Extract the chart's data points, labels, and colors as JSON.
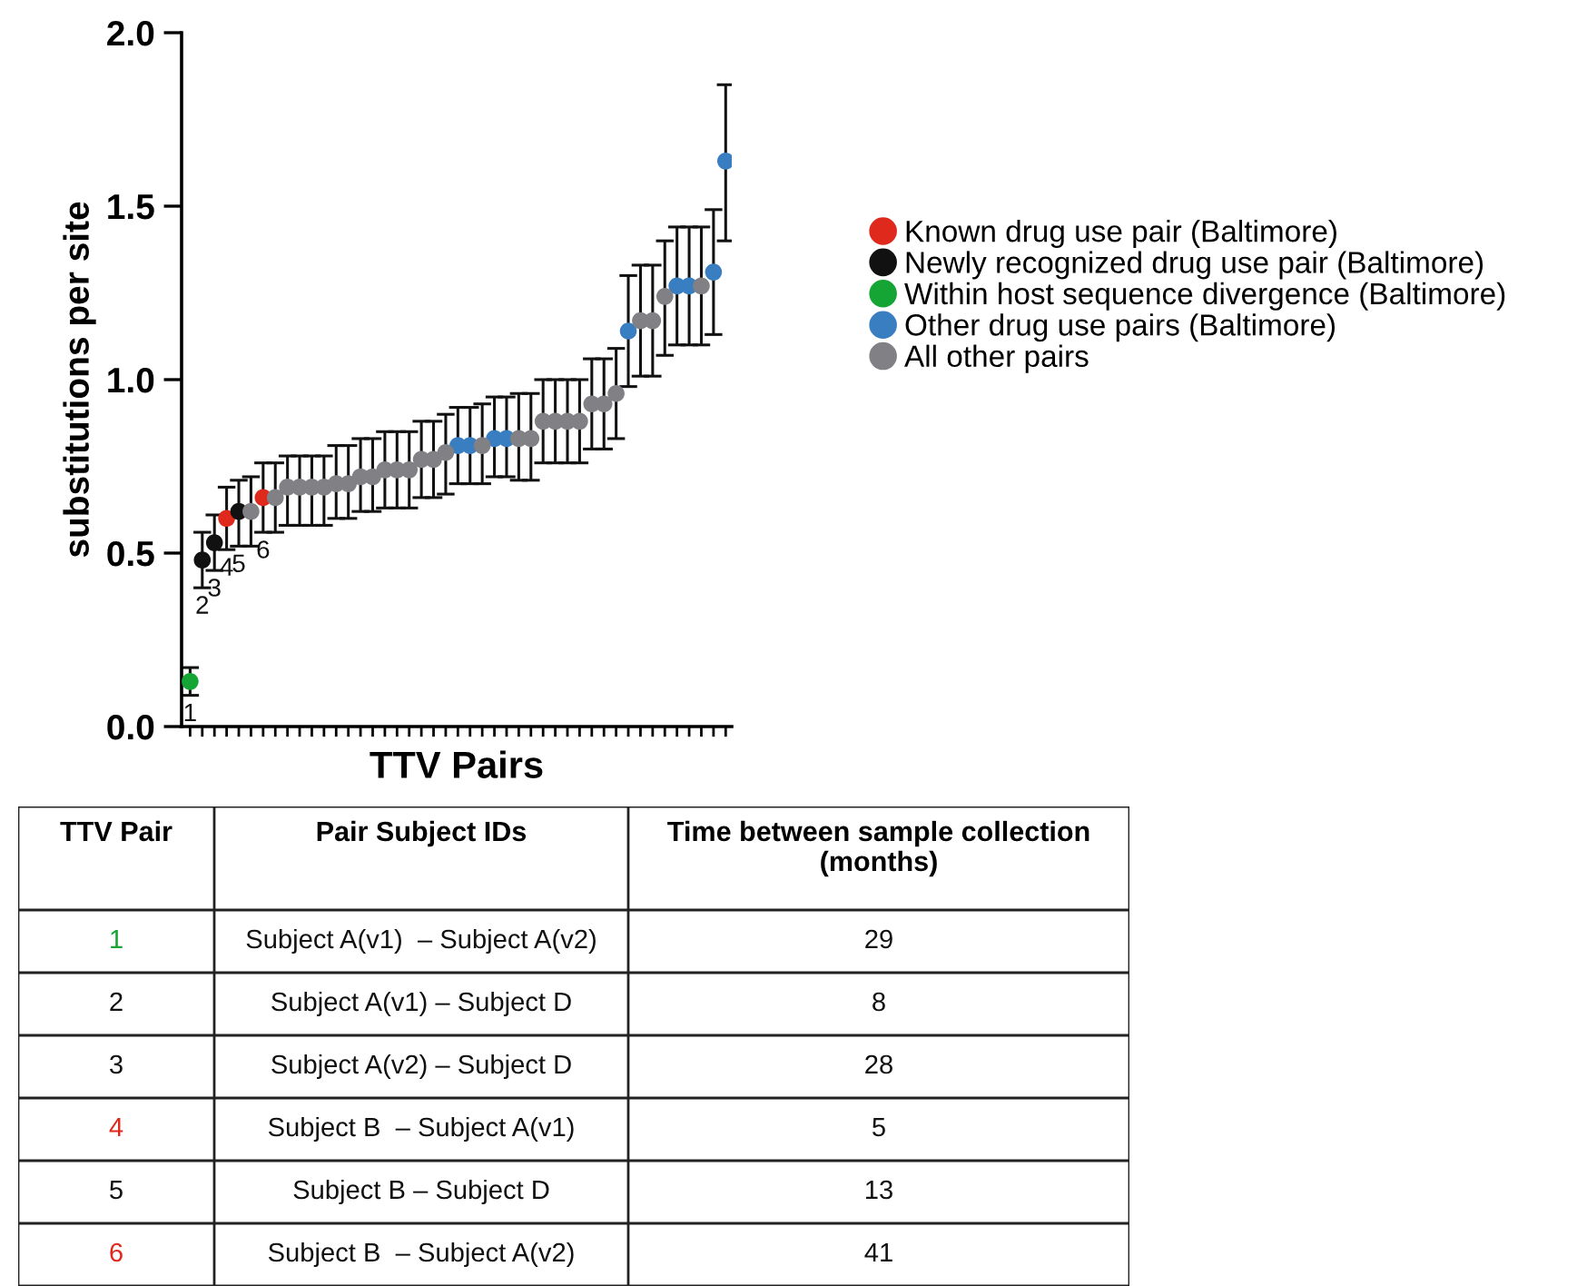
{
  "chart_data": {
    "type": "scatter",
    "xlabel": "TTV Pairs",
    "ylabel": "substitutions per site",
    "categories": [
      null,
      null,
      null,
      null,
      null,
      null,
      null,
      null,
      null,
      null,
      null,
      null,
      null,
      null,
      null,
      null,
      null,
      null,
      null,
      null,
      null,
      null,
      null,
      null,
      null,
      null,
      null,
      null,
      null,
      null,
      null,
      null,
      null,
      null,
      null,
      null,
      null,
      null,
      null,
      null,
      null,
      null,
      null,
      null,
      null
    ],
    "ylim": [
      0,
      2
    ],
    "yticks": [
      {
        "value": 0,
        "label": "0.0"
      },
      {
        "value": 0.5,
        "label": "0.5"
      },
      {
        "value": 1,
        "label": "1.0"
      },
      {
        "value": 1.5,
        "label": "1.5"
      },
      {
        "value": 2,
        "label": "2.0"
      }
    ],
    "grid": false,
    "legend": "right",
    "marker": "circle",
    "annotations": [
      {
        "text": "1",
        "y": 0.13
      },
      {
        "text": "2",
        "y": 0.48
      },
      {
        "text": "3",
        "y": 0.53
      },
      {
        "text": "4",
        "y": 0.6
      },
      {
        "text": "5",
        "y": 0.62
      },
      {
        "text": "6",
        "y": 0.66
      },
      "TTV Pair",
      "Pair Subject IDs",
      "Time between sample collection (months)",
      "1",
      "Subject A(v1)  – Subject A(v2)",
      "29",
      "2",
      "Subject A(v1) – Subject D",
      "8",
      "3",
      "Subject A(v2) – Subject D",
      "28",
      "4",
      "Subject B  – Subject A(v1)",
      "5",
      "5",
      "Subject B – Subject D",
      "13",
      "6",
      "Subject B  – Subject A(v2)",
      "41"
    ],
    "series": [
      {
        "name": "Known drug use pair (Baltimore)",
        "color": "#e0291d",
        "values": [
          null,
          null,
          null,
          0.6,
          null,
          null,
          0.66,
          null,
          null,
          null,
          null,
          null,
          null,
          null,
          null,
          null,
          null,
          null,
          null,
          null,
          null,
          null,
          null,
          null,
          null,
          null,
          null,
          null,
          null,
          null,
          null,
          null,
          null,
          null,
          null,
          null,
          null,
          null,
          null,
          null,
          null,
          null,
          null,
          null,
          null
        ],
        "errors": [
          null,
          null,
          null,
          [
            0.51,
            0.69
          ],
          null,
          null,
          [
            0.56,
            0.76
          ],
          null,
          null,
          null,
          null,
          null,
          null,
          null,
          null,
          null,
          null,
          null,
          null,
          null,
          null,
          null,
          null,
          null,
          null,
          null,
          null,
          null,
          null,
          null,
          null,
          null,
          null,
          null,
          null,
          null,
          null,
          null,
          null,
          null,
          null,
          null,
          null,
          null,
          null
        ]
      },
      {
        "name": "Newly recognized drug use pair (Baltimore)",
        "color": "#111111",
        "values": [
          null,
          0.48,
          0.53,
          null,
          0.62,
          null,
          null,
          null,
          null,
          null,
          null,
          null,
          null,
          null,
          null,
          null,
          null,
          null,
          null,
          null,
          null,
          null,
          null,
          null,
          null,
          null,
          null,
          null,
          null,
          null,
          null,
          null,
          null,
          null,
          null,
          null,
          null,
          null,
          null,
          null,
          null,
          null,
          null,
          null,
          null
        ],
        "errors": [
          null,
          [
            0.4,
            0.56
          ],
          [
            0.45,
            0.61
          ],
          null,
          [
            0.52,
            0.71
          ],
          null,
          null,
          null,
          null,
          null,
          null,
          null,
          null,
          null,
          null,
          null,
          null,
          null,
          null,
          null,
          null,
          null,
          null,
          null,
          null,
          null,
          null,
          null,
          null,
          null,
          null,
          null,
          null,
          null,
          null,
          null,
          null,
          null,
          null,
          null,
          null,
          null,
          null,
          null,
          null
        ]
      },
      {
        "name": "Within host sequence divergence (Baltimore)",
        "color": "#14a535",
        "values": [
          0.13,
          null,
          null,
          null,
          null,
          null,
          null,
          null,
          null,
          null,
          null,
          null,
          null,
          null,
          null,
          null,
          null,
          null,
          null,
          null,
          null,
          null,
          null,
          null,
          null,
          null,
          null,
          null,
          null,
          null,
          null,
          null,
          null,
          null,
          null,
          null,
          null,
          null,
          null,
          null,
          null,
          null,
          null,
          null,
          null
        ],
        "errors": [
          [
            0.09,
            0.17
          ],
          null,
          null,
          null,
          null,
          null,
          null,
          null,
          null,
          null,
          null,
          null,
          null,
          null,
          null,
          null,
          null,
          null,
          null,
          null,
          null,
          null,
          null,
          null,
          null,
          null,
          null,
          null,
          null,
          null,
          null,
          null,
          null,
          null,
          null,
          null,
          null,
          null,
          null,
          null,
          null,
          null,
          null,
          null,
          null
        ]
      },
      {
        "name": "Other drug use pairs (Baltimore)",
        "color": "#3a7ec2",
        "values": [
          null,
          null,
          null,
          null,
          null,
          null,
          null,
          null,
          null,
          null,
          null,
          null,
          null,
          null,
          null,
          null,
          null,
          null,
          null,
          null,
          null,
          null,
          0.81,
          0.81,
          null,
          0.83,
          0.83,
          null,
          null,
          null,
          null,
          null,
          null,
          null,
          null,
          null,
          1.14,
          null,
          null,
          null,
          1.27,
          1.27,
          null,
          1.31,
          1.63
        ],
        "errors": [
          null,
          null,
          null,
          null,
          null,
          null,
          null,
          null,
          null,
          null,
          null,
          null,
          null,
          null,
          null,
          null,
          null,
          null,
          null,
          null,
          null,
          null,
          [
            0.7,
            0.92
          ],
          [
            0.7,
            0.92
          ],
          null,
          [
            0.72,
            0.95
          ],
          [
            0.72,
            0.95
          ],
          null,
          null,
          null,
          null,
          null,
          null,
          null,
          null,
          null,
          [
            0.98,
            1.3
          ],
          null,
          null,
          null,
          [
            1.1,
            1.44
          ],
          [
            1.1,
            1.44
          ],
          null,
          [
            1.13,
            1.49
          ],
          [
            1.4,
            1.85
          ]
        ]
      },
      {
        "name": "All other pairs",
        "color": "#818085",
        "values": [
          null,
          null,
          null,
          null,
          null,
          0.62,
          null,
          0.66,
          0.69,
          0.69,
          0.69,
          0.69,
          0.7,
          0.7,
          0.72,
          0.72,
          0.74,
          0.74,
          0.74,
          0.77,
          0.77,
          0.79,
          null,
          null,
          0.81,
          null,
          null,
          0.83,
          0.83,
          0.88,
          0.88,
          0.88,
          0.88,
          0.93,
          0.93,
          0.96,
          null,
          1.17,
          1.17,
          1.24,
          null,
          null,
          1.27,
          null,
          null
        ],
        "errors": [
          null,
          null,
          null,
          null,
          null,
          [
            0.52,
            0.72
          ],
          null,
          [
            0.56,
            0.76
          ],
          [
            0.58,
            0.78
          ],
          [
            0.58,
            0.78
          ],
          [
            0.58,
            0.78
          ],
          [
            0.58,
            0.78
          ],
          [
            0.6,
            0.81
          ],
          [
            0.6,
            0.81
          ],
          [
            0.62,
            0.83
          ],
          [
            0.62,
            0.83
          ],
          [
            0.63,
            0.85
          ],
          [
            0.63,
            0.85
          ],
          [
            0.63,
            0.85
          ],
          [
            0.66,
            0.88
          ],
          [
            0.66,
            0.88
          ],
          [
            0.67,
            0.9
          ],
          null,
          null,
          [
            0.7,
            0.93
          ],
          null,
          null,
          [
            0.71,
            0.96
          ],
          [
            0.71,
            0.96
          ],
          [
            0.76,
            1.0
          ],
          [
            0.76,
            1.0
          ],
          [
            0.76,
            1.0
          ],
          [
            0.76,
            1.0
          ],
          [
            0.8,
            1.06
          ],
          [
            0.8,
            1.06
          ],
          [
            0.83,
            1.09
          ],
          null,
          [
            1.01,
            1.33
          ],
          [
            1.01,
            1.33
          ],
          [
            1.07,
            1.4
          ],
          null,
          null,
          [
            1.1,
            1.44
          ],
          null,
          null
        ]
      }
    ]
  }
}
